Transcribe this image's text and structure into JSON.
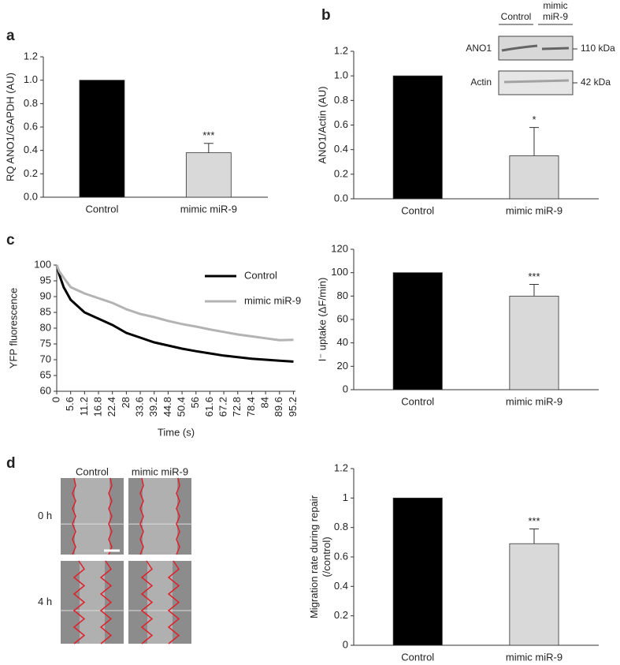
{
  "panels": [
    "a",
    "b",
    "c",
    "d"
  ],
  "chart_data": [
    {
      "type": "bar",
      "ylabel": "RQ ANO1/GAPDH (AU)",
      "categories": [
        "Control",
        "mimic miR-9"
      ],
      "values": [
        1.0,
        0.38
      ],
      "errors": [
        0,
        0.08
      ],
      "annotations": [
        null,
        "***"
      ],
      "colors": [
        "#000000",
        "#d9d9d9"
      ],
      "ylim": [
        0,
        1.2
      ],
      "yticks": [
        {
          "value": 0,
          "label": "0.0"
        },
        0.2,
        0.4,
        0.6,
        0.8,
        {
          "value": 1,
          "label": "1.0"
        },
        1.2
      ]
    },
    {
      "type": "bar",
      "ylabel": "ANO1/Actin (AU)",
      "categories": [
        "Control",
        "mimic miR-9"
      ],
      "values": [
        1.0,
        0.35
      ],
      "errors": [
        0,
        0.23
      ],
      "annotations": [
        null,
        "*"
      ],
      "colors": [
        "#000000",
        "#d9d9d9"
      ],
      "ylim": [
        0,
        1.2
      ],
      "yticks": [
        {
          "value": 0,
          "label": "0.0"
        },
        0.2,
        0.4,
        0.6,
        0.8,
        {
          "value": 1,
          "label": "1.0"
        },
        1.2
      ]
    },
    {
      "type": "line",
      "ylabel": "YFP fluorescence",
      "xlabel": "Time (s)",
      "x": [
        0,
        1,
        2.8,
        5.6,
        11.2,
        16.8,
        22.4,
        28,
        33.6,
        39.2,
        44.8,
        50.4,
        56,
        61.6,
        67.2,
        72.8,
        78.4,
        84,
        89.6,
        95.2
      ],
      "series": [
        {
          "name": "Control",
          "color": "#000000",
          "values": [
            100,
            97,
            93,
            89,
            85,
            83,
            81,
            78.5,
            77,
            75.5,
            74.5,
            73.5,
            72.7,
            72,
            71.3,
            70.8,
            70.3,
            70,
            69.7,
            69.4
          ]
        },
        {
          "name": "mimic miR-9",
          "color": "#b3b3b3",
          "values": [
            100,
            98,
            96,
            93,
            91,
            89.5,
            88,
            86,
            84.5,
            83.5,
            82.3,
            81.3,
            80.5,
            79.6,
            78.8,
            78,
            77.4,
            76.8,
            76.2,
            76.3
          ]
        }
      ],
      "xlim": [
        0,
        96
      ],
      "xticks": [
        0,
        5.6,
        11.2,
        16.8,
        22.4,
        28,
        33.6,
        39.2,
        44.8,
        50.4,
        56,
        61.6,
        67.2,
        72.8,
        78.4,
        84,
        89.6,
        95.2
      ],
      "ylim": [
        60,
        100
      ],
      "yticks": [
        60,
        65,
        70,
        75,
        80,
        85,
        90,
        95,
        100
      ],
      "legend": "upper right"
    },
    {
      "type": "bar",
      "ylabel": "I⁻ uptake (ΔF/min)",
      "categories": [
        "Control",
        "mimic miR-9"
      ],
      "values": [
        100,
        80
      ],
      "errors": [
        0,
        10
      ],
      "annotations": [
        null,
        "***"
      ],
      "colors": [
        "#000000",
        "#d9d9d9"
      ],
      "ylim": [
        0,
        120
      ],
      "yticks": [
        0,
        20,
        40,
        60,
        80,
        100,
        120
      ]
    },
    {
      "type": "bar",
      "ylabel": "Migration rate during repair (/control)",
      "categories": [
        "Control",
        "mimic miR-9"
      ],
      "values": [
        1,
        0.69
      ],
      "errors": [
        0,
        0.1
      ],
      "annotations": [
        null,
        "***"
      ],
      "colors": [
        "#000000",
        "#d9d9d9"
      ],
      "ylim": [
        0,
        1.2
      ],
      "yticks": [
        0,
        0.2,
        0.4,
        0.6,
        0.8,
        1,
        1.2
      ]
    }
  ],
  "blot": {
    "lanes": [
      [
        "Control"
      ],
      [
        "mimic",
        "miR-9"
      ]
    ],
    "bands": [
      "ANO1",
      "Actin"
    ],
    "sizes": [
      "110 kDa",
      "42 kDa"
    ]
  },
  "micrograph": {
    "columns": [
      "Control",
      "mimic miR-9"
    ],
    "rows": [
      "0 h",
      "4 h"
    ]
  }
}
